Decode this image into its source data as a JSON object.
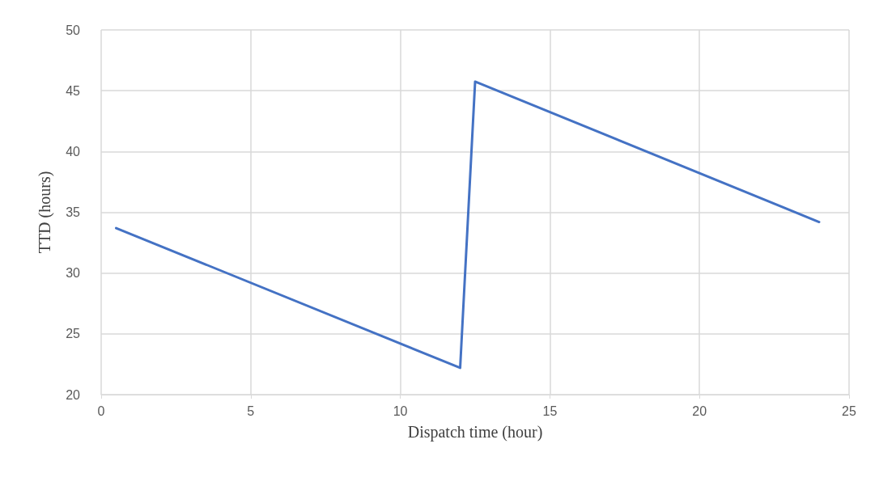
{
  "chart_data": {
    "type": "line",
    "xlabel": "Dispatch time (hour)",
    "ylabel": "TTD (hours)",
    "x": [
      0.5,
      12,
      12.5,
      24
    ],
    "series": [
      {
        "color": "#4472c4",
        "values": [
          33.7,
          22.2,
          45.75,
          34.2
        ]
      }
    ],
    "xlim": [
      0,
      25
    ],
    "xticks": [
      0,
      5,
      10,
      15,
      20,
      25
    ],
    "ylim": [
      20,
      50
    ],
    "yticks": [
      20,
      25,
      30,
      35,
      40,
      45,
      50
    ],
    "grid": true,
    "marker": "none",
    "line_style": "solid"
  }
}
